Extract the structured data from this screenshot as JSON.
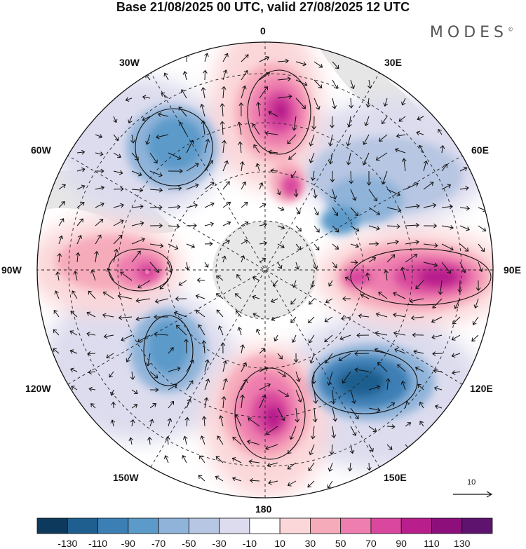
{
  "title": "Base 21/08/2025 00 UTC, valid 27/08/2025 12 UTC",
  "brand": "MODES",
  "brand_mark": "©",
  "meridian_labels": {
    "m0": "0",
    "m30e": "30E",
    "m60e": "60E",
    "m90e": "90E",
    "m120e": "120E",
    "m150e": "150E",
    "m180": "180",
    "m150w": "150W",
    "m120w": "120W",
    "m90w": "90W",
    "m60w": "60W",
    "m30w": "30W"
  },
  "reference_vector_label": "10",
  "colorbar": {
    "colors": [
      "#0d3a5c",
      "#1f5f8f",
      "#3c7fb5",
      "#5b9ac9",
      "#8fb3d9",
      "#b7c6e2",
      "#dcdcee",
      "#ffffff",
      "#fbd7d9",
      "#f6abbb",
      "#ee7eaf",
      "#d9479e",
      "#b81f8c",
      "#8c0f7c",
      "#5e136e"
    ],
    "labels": [
      "-130",
      "-110",
      "-90",
      "-70",
      "-50",
      "-30",
      "-10",
      "10",
      "30",
      "50",
      "70",
      "90",
      "110",
      "130"
    ]
  },
  "anomaly_centers": [
    {
      "name": "positive-center-0",
      "value": 110,
      "color": "#b81f8c"
    },
    {
      "name": "negative-center-45w",
      "value": -70,
      "color": "#5b9ac9"
    },
    {
      "name": "negative-center-60e",
      "value": -50,
      "color": "#8fb3d9"
    },
    {
      "name": "positive-center-90e",
      "value": 110,
      "color": "#b81f8c"
    },
    {
      "name": "negative-center-130e",
      "value": -110,
      "color": "#1f5f8f"
    },
    {
      "name": "positive-center-180",
      "value": 110,
      "color": "#b81f8c"
    },
    {
      "name": "negative-center-130w",
      "value": -70,
      "color": "#5b9ac9"
    },
    {
      "name": "positive-center-90w",
      "value": 70,
      "color": "#ee7eaf"
    }
  ]
}
